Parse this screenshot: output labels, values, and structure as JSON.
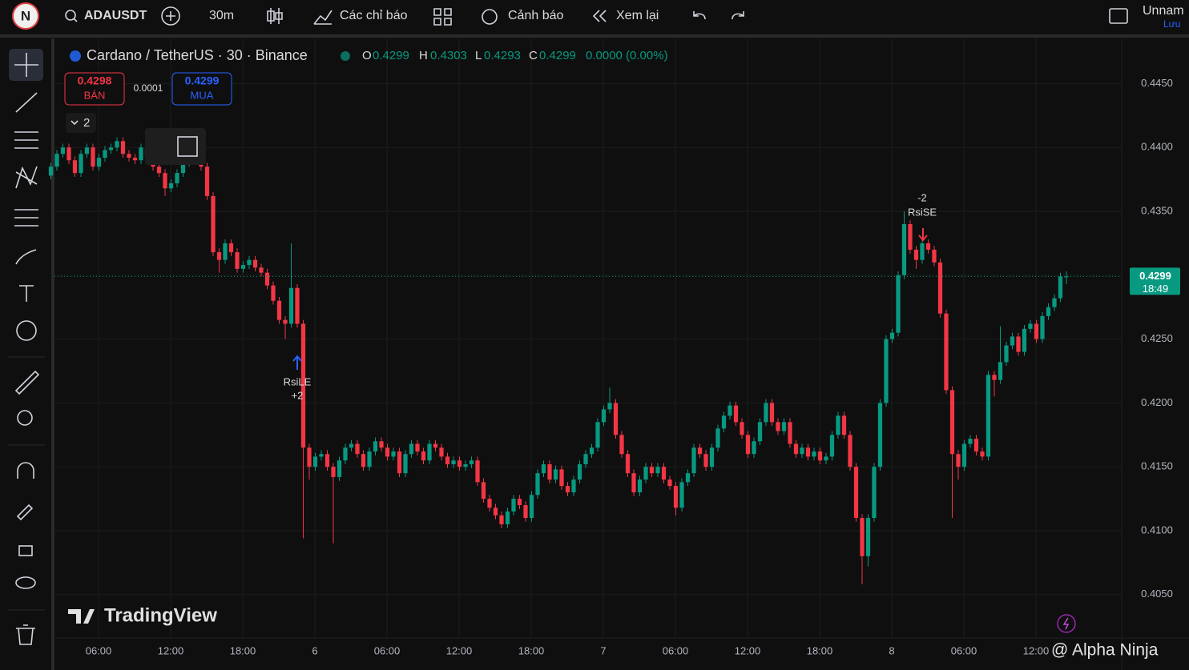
{
  "toolbar": {
    "avatar": "N",
    "symbol": "ADAUSDT",
    "interval": "30m",
    "indicators": "Các chỉ báo",
    "alerts": "Cảnh báo",
    "replay": "Xem lại",
    "layout_name": "Unnam",
    "save": "Lưu"
  },
  "legend": {
    "title": "Cardano / TetherUS · 30 · Binance",
    "o_label": "O",
    "o": "0.4299",
    "h_label": "H",
    "h": "0.4303",
    "l_label": "L",
    "l": "0.4293",
    "c_label": "C",
    "c": "0.4299",
    "change": "0.0000 (0.00%)"
  },
  "trade": {
    "sell_price": "0.4298",
    "sell": "BÁN",
    "spread": "0.0001",
    "buy_price": "0.4299",
    "buy": "MUA"
  },
  "indicator_count": "2",
  "brand": "TradingView",
  "watermark": "@ Alpha Ninja",
  "chart_data": {
    "type": "candlestick",
    "up_color": "#089981",
    "down_color": "#f23645",
    "ylim": [
      0.4016,
      0.4481
    ],
    "yticks": [
      {
        "value": 0.445,
        "label": "0.4450"
      },
      {
        "value": 0.44,
        "label": "0.4400"
      },
      {
        "value": 0.435,
        "label": "0.4350"
      },
      {
        "value": 0.43,
        "label": "0.4300"
      },
      {
        "value": 0.425,
        "label": "0.4250"
      },
      {
        "value": 0.42,
        "label": "0.4200"
      },
      {
        "value": 0.415,
        "label": "0.4150"
      },
      {
        "value": 0.41,
        "label": "0.4100"
      },
      {
        "value": 0.405,
        "label": "0.4050"
      }
    ],
    "xtick_labels": [
      "06:00",
      "12:00",
      "18:00",
      "6",
      "06:00",
      "12:00",
      "18:00",
      "7",
      "06:00",
      "12:00",
      "18:00",
      "8",
      "06:00",
      "12:00"
    ],
    "last_price": {
      "value": 0.4299,
      "label": "0.4299",
      "countdown": "18:49"
    },
    "annotations": [
      {
        "text": "RsiLE",
        "amount": "+2"
      },
      {
        "text": "RsiSE",
        "amount": "-2"
      }
    ],
    "candles": [
      [
        0.4378,
        0.4388,
        0.4375,
        0.4385
      ],
      [
        0.4385,
        0.4398,
        0.4382,
        0.4395
      ],
      [
        0.4395,
        0.4403,
        0.4392,
        0.44
      ],
      [
        0.44,
        0.4403,
        0.4387,
        0.439
      ],
      [
        0.439,
        0.4393,
        0.4377,
        0.438
      ],
      [
        0.438,
        0.4398,
        0.4377,
        0.4395
      ],
      [
        0.4395,
        0.4403,
        0.4392,
        0.44
      ],
      [
        0.44,
        0.4403,
        0.4382,
        0.4385
      ],
      [
        0.4385,
        0.4395,
        0.4382,
        0.4392
      ],
      [
        0.4392,
        0.4401,
        0.4389,
        0.4398
      ],
      [
        0.4398,
        0.4403,
        0.4395,
        0.44
      ],
      [
        0.44,
        0.4408,
        0.4397,
        0.4405
      ],
      [
        0.4405,
        0.4408,
        0.4392,
        0.4395
      ],
      [
        0.4395,
        0.4398,
        0.4389,
        0.4392
      ],
      [
        0.4392,
        0.4395,
        0.4387,
        0.439
      ],
      [
        0.439,
        0.4403,
        0.4387,
        0.44
      ],
      [
        0.44,
        0.4403,
        0.4389,
        0.4392
      ],
      [
        0.4392,
        0.4395,
        0.4382,
        0.4385
      ],
      [
        0.4385,
        0.4388,
        0.4377,
        0.438
      ],
      [
        0.438,
        0.4383,
        0.4362,
        0.4368
      ],
      [
        0.4368,
        0.4375,
        0.4365,
        0.4372
      ],
      [
        0.4372,
        0.4383,
        0.4369,
        0.438
      ],
      [
        0.438,
        0.4391,
        0.4377,
        0.4388
      ],
      [
        0.4388,
        0.4398,
        0.4385,
        0.4395
      ],
      [
        0.4395,
        0.4401,
        0.4392,
        0.4398
      ],
      [
        0.4398,
        0.4401,
        0.4382,
        0.4385
      ],
      [
        0.4385,
        0.4388,
        0.4359,
        0.4362
      ],
      [
        0.4362,
        0.4365,
        0.4315,
        0.4318
      ],
      [
        0.4318,
        0.4321,
        0.4302,
        0.4312
      ],
      [
        0.4312,
        0.4328,
        0.4309,
        0.4325
      ],
      [
        0.4325,
        0.4328,
        0.4315,
        0.4318
      ],
      [
        0.4318,
        0.4321,
        0.4302,
        0.4305
      ],
      [
        0.4305,
        0.4311,
        0.4302,
        0.4308
      ],
      [
        0.4308,
        0.4315,
        0.4305,
        0.4312
      ],
      [
        0.4312,
        0.4315,
        0.4303,
        0.4306
      ],
      [
        0.4306,
        0.4309,
        0.4299,
        0.4302
      ],
      [
        0.4302,
        0.4305,
        0.4289,
        0.4292
      ],
      [
        0.4292,
        0.4295,
        0.4277,
        0.428
      ],
      [
        0.428,
        0.4283,
        0.4262,
        0.4265
      ],
      [
        0.4265,
        0.4268,
        0.425,
        0.4262
      ],
      [
        0.4262,
        0.4325,
        0.4259,
        0.429
      ],
      [
        0.429,
        0.4293,
        0.4259,
        0.4262
      ],
      [
        0.4262,
        0.4265,
        0.4094,
        0.4165
      ],
      [
        0.4165,
        0.4168,
        0.414,
        0.415
      ],
      [
        0.415,
        0.4161,
        0.4147,
        0.4158
      ],
      [
        0.4158,
        0.4163,
        0.4155,
        0.416
      ],
      [
        0.416,
        0.4163,
        0.4147,
        0.415
      ],
      [
        0.415,
        0.4153,
        0.409,
        0.4142
      ],
      [
        0.4142,
        0.4158,
        0.4139,
        0.4155
      ],
      [
        0.4155,
        0.4168,
        0.4152,
        0.4165
      ],
      [
        0.4165,
        0.4171,
        0.4162,
        0.4168
      ],
      [
        0.4168,
        0.4171,
        0.4157,
        0.416
      ],
      [
        0.416,
        0.4163,
        0.4147,
        0.415
      ],
      [
        0.415,
        0.4165,
        0.4147,
        0.4162
      ],
      [
        0.4162,
        0.4173,
        0.4159,
        0.417
      ],
      [
        0.417,
        0.4173,
        0.4162,
        0.4165
      ],
      [
        0.4165,
        0.4168,
        0.4155,
        0.4158
      ],
      [
        0.4158,
        0.4165,
        0.4155,
        0.4162
      ],
      [
        0.4162,
        0.4165,
        0.4142,
        0.4145
      ],
      [
        0.4145,
        0.4163,
        0.4142,
        0.416
      ],
      [
        0.416,
        0.4171,
        0.4157,
        0.4168
      ],
      [
        0.4168,
        0.4171,
        0.4159,
        0.4162
      ],
      [
        0.4162,
        0.4165,
        0.4152,
        0.4155
      ],
      [
        0.4155,
        0.4171,
        0.4152,
        0.4168
      ],
      [
        0.4168,
        0.4171,
        0.4162,
        0.4165
      ],
      [
        0.4165,
        0.4168,
        0.4155,
        0.4158
      ],
      [
        0.4158,
        0.4161,
        0.4149,
        0.4152
      ],
      [
        0.4152,
        0.4158,
        0.4149,
        0.4155
      ],
      [
        0.4155,
        0.4158,
        0.4147,
        0.415
      ],
      [
        0.415,
        0.4155,
        0.4147,
        0.4152
      ],
      [
        0.4152,
        0.4158,
        0.4149,
        0.4155
      ],
      [
        0.4155,
        0.4158,
        0.4135,
        0.4138
      ],
      [
        0.4138,
        0.4141,
        0.4122,
        0.4125
      ],
      [
        0.4125,
        0.4128,
        0.4115,
        0.4118
      ],
      [
        0.4118,
        0.4121,
        0.4109,
        0.4112
      ],
      [
        0.4112,
        0.4115,
        0.4102,
        0.4105
      ],
      [
        0.4105,
        0.4118,
        0.4102,
        0.4115
      ],
      [
        0.4115,
        0.4128,
        0.4112,
        0.4125
      ],
      [
        0.4125,
        0.4128,
        0.4117,
        0.412
      ],
      [
        0.412,
        0.4123,
        0.4107,
        0.411
      ],
      [
        0.411,
        0.4131,
        0.4107,
        0.4128
      ],
      [
        0.4128,
        0.4148,
        0.4125,
        0.4145
      ],
      [
        0.4145,
        0.4155,
        0.4142,
        0.4152
      ],
      [
        0.4152,
        0.4155,
        0.4137,
        0.414
      ],
      [
        0.414,
        0.4151,
        0.4137,
        0.4148
      ],
      [
        0.4148,
        0.4151,
        0.4132,
        0.4135
      ],
      [
        0.4135,
        0.4138,
        0.4127,
        0.413
      ],
      [
        0.413,
        0.4143,
        0.4127,
        0.414
      ],
      [
        0.414,
        0.4155,
        0.4137,
        0.4152
      ],
      [
        0.4152,
        0.4163,
        0.4149,
        0.416
      ],
      [
        0.416,
        0.4168,
        0.4157,
        0.4165
      ],
      [
        0.4165,
        0.4188,
        0.4162,
        0.4185
      ],
      [
        0.4185,
        0.4198,
        0.4182,
        0.4195
      ],
      [
        0.4195,
        0.4212,
        0.4192,
        0.42
      ],
      [
        0.42,
        0.4203,
        0.4172,
        0.4175
      ],
      [
        0.4175,
        0.4178,
        0.4157,
        0.416
      ],
      [
        0.416,
        0.4163,
        0.4142,
        0.4145
      ],
      [
        0.4145,
        0.4148,
        0.4127,
        0.413
      ],
      [
        0.413,
        0.4143,
        0.4127,
        0.414
      ],
      [
        0.414,
        0.4153,
        0.4137,
        0.415
      ],
      [
        0.415,
        0.4153,
        0.4142,
        0.4145
      ],
      [
        0.4145,
        0.4153,
        0.4142,
        0.415
      ],
      [
        0.415,
        0.4153,
        0.4137,
        0.414
      ],
      [
        0.414,
        0.4143,
        0.4132,
        0.4135
      ],
      [
        0.4135,
        0.4138,
        0.4112,
        0.4118
      ],
      [
        0.4118,
        0.4141,
        0.4115,
        0.4138
      ],
      [
        0.4138,
        0.4148,
        0.4135,
        0.4145
      ],
      [
        0.4145,
        0.4168,
        0.4142,
        0.4165
      ],
      [
        0.4165,
        0.4168,
        0.4157,
        0.416
      ],
      [
        0.416,
        0.4163,
        0.4147,
        0.415
      ],
      [
        0.415,
        0.4168,
        0.4147,
        0.4165
      ],
      [
        0.4165,
        0.4183,
        0.4162,
        0.418
      ],
      [
        0.418,
        0.4193,
        0.4177,
        0.419
      ],
      [
        0.419,
        0.4201,
        0.4187,
        0.4198
      ],
      [
        0.4198,
        0.4201,
        0.4182,
        0.4185
      ],
      [
        0.4185,
        0.4188,
        0.4172,
        0.4175
      ],
      [
        0.4175,
        0.4178,
        0.4157,
        0.416
      ],
      [
        0.416,
        0.4173,
        0.4157,
        0.417
      ],
      [
        0.417,
        0.4188,
        0.4167,
        0.4185
      ],
      [
        0.4185,
        0.4203,
        0.4182,
        0.42
      ],
      [
        0.42,
        0.4203,
        0.4182,
        0.4185
      ],
      [
        0.4185,
        0.4188,
        0.4175,
        0.4178
      ],
      [
        0.4178,
        0.4188,
        0.4175,
        0.4185
      ],
      [
        0.4185,
        0.4188,
        0.4165,
        0.4168
      ],
      [
        0.4168,
        0.4171,
        0.4157,
        0.416
      ],
      [
        0.416,
        0.4168,
        0.4157,
        0.4165
      ],
      [
        0.4165,
        0.4168,
        0.4155,
        0.4158
      ],
      [
        0.4158,
        0.4165,
        0.4155,
        0.4162
      ],
      [
        0.4162,
        0.4165,
        0.4152,
        0.4155
      ],
      [
        0.4155,
        0.4161,
        0.4152,
        0.4158
      ],
      [
        0.4158,
        0.4178,
        0.4155,
        0.4175
      ],
      [
        0.4175,
        0.4193,
        0.4172,
        0.419
      ],
      [
        0.419,
        0.4193,
        0.4172,
        0.4175
      ],
      [
        0.4175,
        0.4178,
        0.4147,
        0.415
      ],
      [
        0.415,
        0.4153,
        0.4107,
        0.411
      ],
      [
        0.411,
        0.4113,
        0.4058,
        0.408
      ],
      [
        0.408,
        0.4113,
        0.4072,
        0.411
      ],
      [
        0.411,
        0.4153,
        0.4107,
        0.415
      ],
      [
        0.415,
        0.4203,
        0.4147,
        0.42
      ],
      [
        0.42,
        0.4253,
        0.4197,
        0.425
      ],
      [
        0.425,
        0.4258,
        0.4247,
        0.4255
      ],
      [
        0.4255,
        0.4303,
        0.4252,
        0.43
      ],
      [
        0.43,
        0.435,
        0.4297,
        0.434
      ],
      [
        0.434,
        0.4343,
        0.4317,
        0.432
      ],
      [
        0.432,
        0.4323,
        0.4305,
        0.4312
      ],
      [
        0.4312,
        0.4328,
        0.4309,
        0.4325
      ],
      [
        0.4325,
        0.4328,
        0.4317,
        0.432
      ],
      [
        0.432,
        0.4323,
        0.4307,
        0.431
      ],
      [
        0.431,
        0.4313,
        0.4267,
        0.427
      ],
      [
        0.427,
        0.4273,
        0.4207,
        0.421
      ],
      [
        0.421,
        0.4213,
        0.411,
        0.416
      ],
      [
        0.416,
        0.4163,
        0.414,
        0.415
      ],
      [
        0.415,
        0.4171,
        0.4147,
        0.4168
      ],
      [
        0.4168,
        0.4175,
        0.4165,
        0.4172
      ],
      [
        0.4172,
        0.4175,
        0.4159,
        0.4162
      ],
      [
        0.4162,
        0.4165,
        0.4155,
        0.4158
      ],
      [
        0.4158,
        0.4225,
        0.4155,
        0.4222
      ],
      [
        0.4222,
        0.4225,
        0.4205,
        0.4218
      ],
      [
        0.4218,
        0.426,
        0.4215,
        0.4232
      ],
      [
        0.4232,
        0.4248,
        0.4229,
        0.4245
      ],
      [
        0.4245,
        0.4255,
        0.4242,
        0.4252
      ],
      [
        0.4252,
        0.4255,
        0.4237,
        0.424
      ],
      [
        0.424,
        0.4261,
        0.4237,
        0.4258
      ],
      [
        0.4258,
        0.4265,
        0.4255,
        0.4262
      ],
      [
        0.4262,
        0.4265,
        0.4247,
        0.425
      ],
      [
        0.425,
        0.4271,
        0.4247,
        0.4268
      ],
      [
        0.4268,
        0.4278,
        0.4265,
        0.4275
      ],
      [
        0.4275,
        0.4285,
        0.4272,
        0.4282
      ],
      [
        0.4282,
        0.4302,
        0.4279,
        0.4299
      ],
      [
        0.4299,
        0.4303,
        0.4293,
        0.4299
      ]
    ]
  }
}
